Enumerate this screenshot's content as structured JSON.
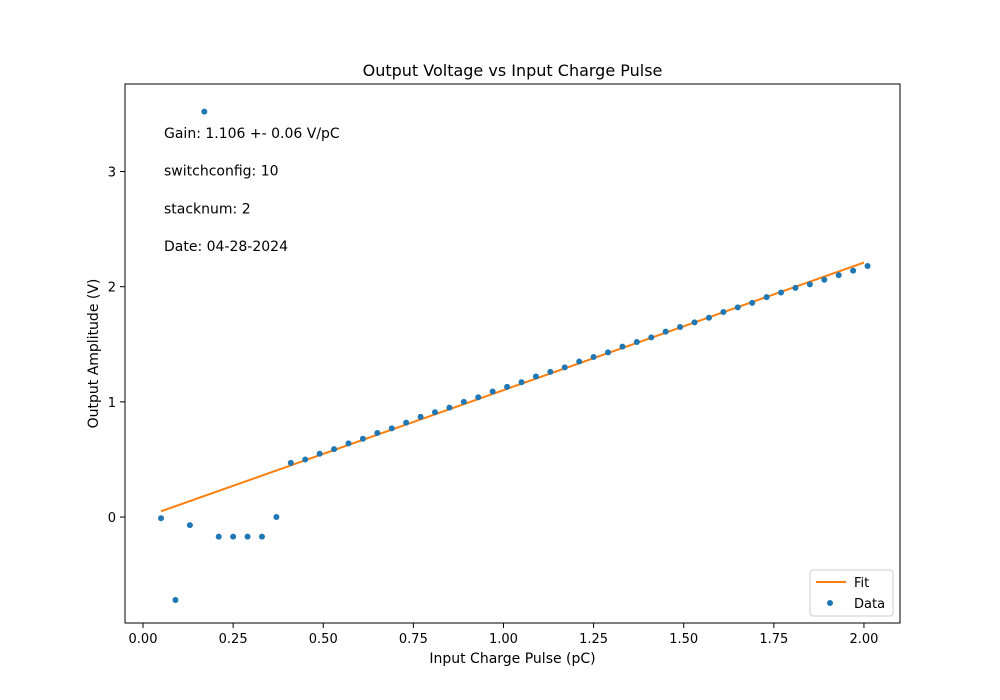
{
  "chart_data": {
    "type": "scatter",
    "title": "Output Voltage vs Input Charge Pulse",
    "xlabel": "Input Charge Pulse (pC)",
    "ylabel": "Output Amplitude (V)",
    "xlim": [
      -0.05,
      2.1
    ],
    "ylim": [
      -0.92,
      3.76
    ],
    "x_ticks": [
      0.0,
      0.25,
      0.5,
      0.75,
      1.0,
      1.25,
      1.5,
      1.75,
      2.0
    ],
    "x_tick_labels": [
      "0.00",
      "0.25",
      "0.50",
      "0.75",
      "1.00",
      "1.25",
      "1.50",
      "1.75",
      "2.00"
    ],
    "y_ticks": [
      0,
      1,
      2,
      3
    ],
    "y_tick_labels": [
      "0",
      "1",
      "2",
      "3"
    ],
    "grid": false,
    "legend_position": "lower-right",
    "annotations": [
      "Gain:  1.106 +-  0.06 V/pC",
      "switchconfig: 10",
      "stacknum: 2",
      "Date: 04-28-2024"
    ],
    "series": [
      {
        "name": "Fit",
        "kind": "line",
        "color": "#ff7f0e",
        "x": [
          0.05,
          2.0
        ],
        "y": [
          0.05,
          2.21
        ]
      },
      {
        "name": "Data",
        "kind": "scatter",
        "color": "#1f77b4",
        "x": [
          0.05,
          0.09,
          0.13,
          0.17,
          0.21,
          0.25,
          0.29,
          0.33,
          0.37,
          0.41,
          0.45,
          0.49,
          0.53,
          0.57,
          0.61,
          0.65,
          0.69,
          0.73,
          0.77,
          0.81,
          0.85,
          0.89,
          0.93,
          0.97,
          1.01,
          1.05,
          1.09,
          1.13,
          1.17,
          1.21,
          1.25,
          1.29,
          1.33,
          1.37,
          1.41,
          1.45,
          1.49,
          1.53,
          1.57,
          1.61,
          1.65,
          1.69,
          1.73,
          1.77,
          1.81,
          1.85,
          1.89,
          1.93,
          1.97,
          2.01
        ],
        "y": [
          -0.01,
          -0.72,
          -0.07,
          3.52,
          -0.17,
          -0.17,
          -0.17,
          -0.17,
          0.0,
          0.47,
          0.5,
          0.55,
          0.59,
          0.64,
          0.68,
          0.73,
          0.77,
          0.82,
          0.87,
          0.91,
          0.95,
          1.0,
          1.04,
          1.09,
          1.13,
          1.17,
          1.22,
          1.26,
          1.3,
          1.35,
          1.39,
          1.43,
          1.48,
          1.52,
          1.56,
          1.61,
          1.65,
          1.69,
          1.73,
          1.78,
          1.82,
          1.86,
          1.91,
          1.95,
          1.99,
          2.02,
          2.06,
          2.1,
          2.14,
          2.18
        ]
      }
    ]
  }
}
